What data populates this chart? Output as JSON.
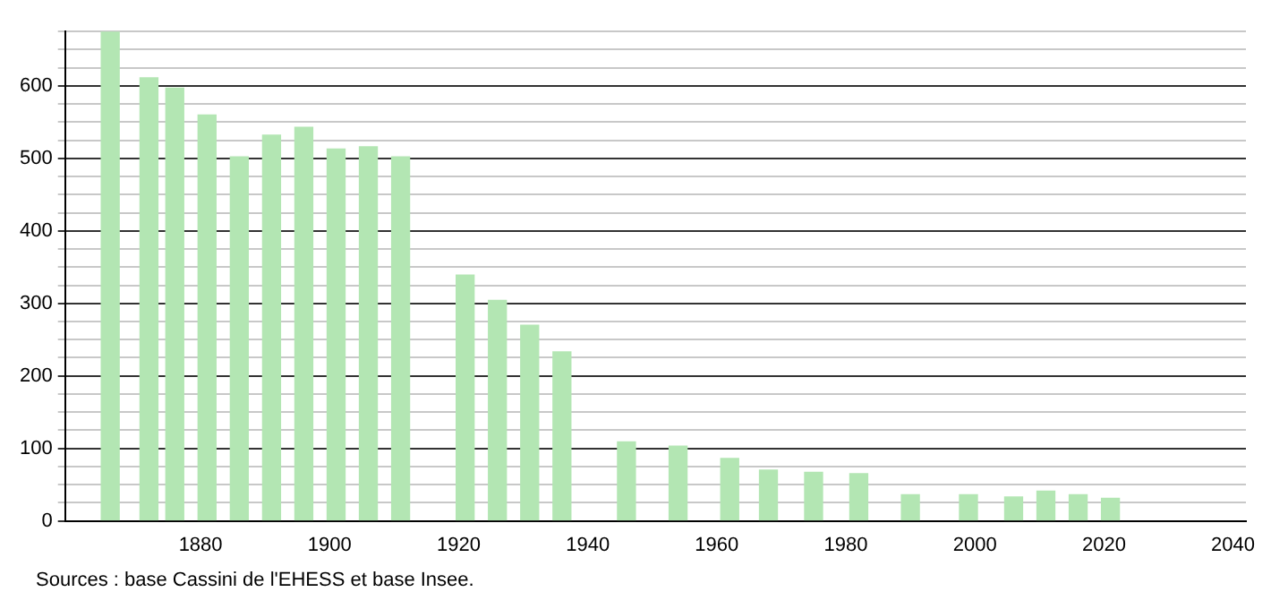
{
  "chart_data": {
    "type": "bar",
    "color": "#b3e6b3",
    "x": [
      1866,
      1872,
      1876,
      1881,
      1886,
      1891,
      1896,
      1901,
      1906,
      1911,
      1921,
      1926,
      1931,
      1936,
      1946,
      1954,
      1962,
      1968,
      1975,
      1982,
      1990,
      1999,
      2006,
      2011,
      2016,
      2021
    ],
    "values": [
      675,
      611,
      597,
      560,
      502,
      532,
      543,
      513,
      516,
      502,
      339,
      304,
      270,
      233,
      109,
      103,
      86,
      70,
      67,
      65,
      36,
      36,
      33,
      41,
      36,
      31
    ],
    "xlim": [
      1859,
      2042
    ],
    "xticks": [
      1880,
      1900,
      1920,
      1940,
      1960,
      1980,
      2000,
      2020,
      2040
    ],
    "ylim": [
      0,
      675
    ],
    "yticks": [
      0,
      {
        "value": 25,
        "label": null
      },
      {
        "value": 50,
        "label": null
      },
      {
        "value": 75,
        "label": null
      },
      100,
      {
        "value": 125,
        "label": null
      },
      {
        "value": 150,
        "label": null
      },
      {
        "value": 175,
        "label": null
      },
      200,
      {
        "value": 225,
        "label": null
      },
      {
        "value": 250,
        "label": null
      },
      {
        "value": 275,
        "label": null
      },
      300,
      {
        "value": 325,
        "label": null
      },
      {
        "value": 350,
        "label": null
      },
      {
        "value": 375,
        "label": null
      },
      400,
      {
        "value": 425,
        "label": null
      },
      {
        "value": 450,
        "label": null
      },
      {
        "value": 475,
        "label": null
      },
      500,
      {
        "value": 525,
        "label": null
      },
      {
        "value": 550,
        "label": null
      },
      {
        "value": 575,
        "label": null
      },
      600,
      {
        "value": 625,
        "label": null
      },
      {
        "value": 650,
        "label": null
      },
      {
        "value": 675,
        "label": null
      }
    ],
    "grid": "y",
    "annotations": [
      "Sources : base Cassini de l'EHESS et base Insee."
    ]
  }
}
